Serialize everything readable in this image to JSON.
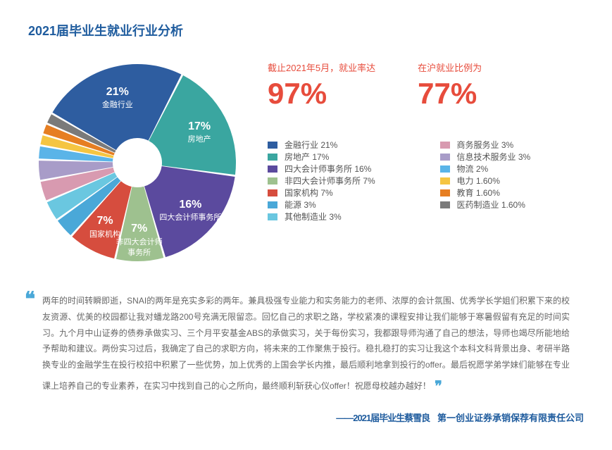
{
  "title": "2021届毕业生就业行业分析",
  "pie": {
    "type": "pie",
    "slices": [
      {
        "label": "金融行业",
        "pct": "21%",
        "value": 21,
        "color": "#2e5da0",
        "show_on_slice": true
      },
      {
        "label": "房地产",
        "pct": "17%",
        "value": 17,
        "color": "#3aa6a0",
        "show_on_slice": true
      },
      {
        "label": "四大会计师事务所",
        "pct": "16%",
        "value": 16,
        "color": "#5b4a9e",
        "show_on_slice": true
      },
      {
        "label": "非四大会计师\n事务所",
        "pct": "7%",
        "value": 7,
        "color": "#9ec18f",
        "show_on_slice": true
      },
      {
        "label": "国家机构",
        "pct": "7%",
        "value": 7,
        "color": "#d64d3e",
        "show_on_slice": true
      },
      {
        "label": "能源",
        "pct": "",
        "value": 3,
        "color": "#4aa8d8",
        "show_on_slice": false
      },
      {
        "label": "其他制造业",
        "pct": "",
        "value": 3,
        "color": "#6ac7e0",
        "show_on_slice": false
      },
      {
        "label": "商务服务业",
        "pct": "",
        "value": 3,
        "color": "#d89ab0",
        "show_on_slice": false
      },
      {
        "label": "信息技术服务业",
        "pct": "",
        "value": 3,
        "color": "#a89cc8",
        "show_on_slice": false
      },
      {
        "label": "物流",
        "pct": "",
        "value": 2,
        "color": "#5ab4e8",
        "show_on_slice": false
      },
      {
        "label": "电力",
        "pct": "",
        "value": 1.6,
        "color": "#f5c542",
        "show_on_slice": false
      },
      {
        "label": "教育",
        "pct": "",
        "value": 1.6,
        "color": "#e67e22",
        "show_on_slice": false
      },
      {
        "label": "医药制造业",
        "pct": "",
        "value": 1.6,
        "color": "#7a7a7a",
        "show_on_slice": false
      }
    ],
    "outer_radius": 140,
    "inner_radius": 35,
    "gap_deg": 1.2,
    "start_angle_deg": -60,
    "background_color": "#ffffff"
  },
  "stats": [
    {
      "label": "截止2021年5月，就业率达",
      "value": "97%"
    },
    {
      "label": "在沪就业比例为",
      "value": "77%"
    }
  ],
  "legend": {
    "left": [
      {
        "color": "#2e5da0",
        "text": "金融行业  21%"
      },
      {
        "color": "#3aa6a0",
        "text": "房地产  17%"
      },
      {
        "color": "#5b4a9e",
        "text": "四大会计师事务所  16%"
      },
      {
        "color": "#9ec18f",
        "text": "非四大会计师事务所  7%"
      },
      {
        "color": "#d64d3e",
        "text": "国家机构  7%"
      },
      {
        "color": "#4aa8d8",
        "text": "能源  3%"
      },
      {
        "color": "#6ac7e0",
        "text": "其他制造业  3%"
      }
    ],
    "right": [
      {
        "color": "#d89ab0",
        "text": "商务服务业  3%"
      },
      {
        "color": "#a89cc8",
        "text": "信息技术服务业  3%"
      },
      {
        "color": "#5ab4e8",
        "text": "物流  2%"
      },
      {
        "color": "#f5c542",
        "text": "电力  1.60%"
      },
      {
        "color": "#e67e22",
        "text": "教育  1.60%"
      },
      {
        "color": "#7a7a7a",
        "text": "医药制造业  1.60%"
      }
    ]
  },
  "quote": {
    "text": "两年的时间转瞬即逝，SNAI的两年是充实多彩的两年。兼具极强专业能力和实务能力的老师、浓厚的会计氛围、优秀学长学姐们积累下来的校友资源、优美的校园都让我对蟠龙路200号充满无限留恋。回忆自己的求职之路，学校紧凑的课程安排让我们能够于寒暑假留有充足的时间实习。九个月中山证券的债券承做实习、三个月平安基金ABS的承做实习，关于每份实习，我都跟导师沟通了自己的想法，导师也竭尽所能地给予帮助和建议。两份实习过后，我确定了自己的求职方向，将未来的工作聚焦于投行。稳扎稳打的实习让我这个本科文科背景出身、考研半路换专业的金融学生在投行校招中积累了一些优势，加上优秀的上国会学长内推，最后顺利地拿到投行的offer。最后祝愿学弟学妹们能够在专业课上培养自己的专业素养，在实习中找到自己的心之所向，最终顺利斩获心仪offer！祝愿母校越办越好！"
  },
  "attribution_name": "——2021届毕业生蔡雪良",
  "attribution_org": "第一创业证券承销保荐有限责任公司",
  "colors": {
    "title": "#1f5c9e",
    "stat": "#e74c3c",
    "quote_mark": "#4aa8d8",
    "body_text": "#666666"
  }
}
